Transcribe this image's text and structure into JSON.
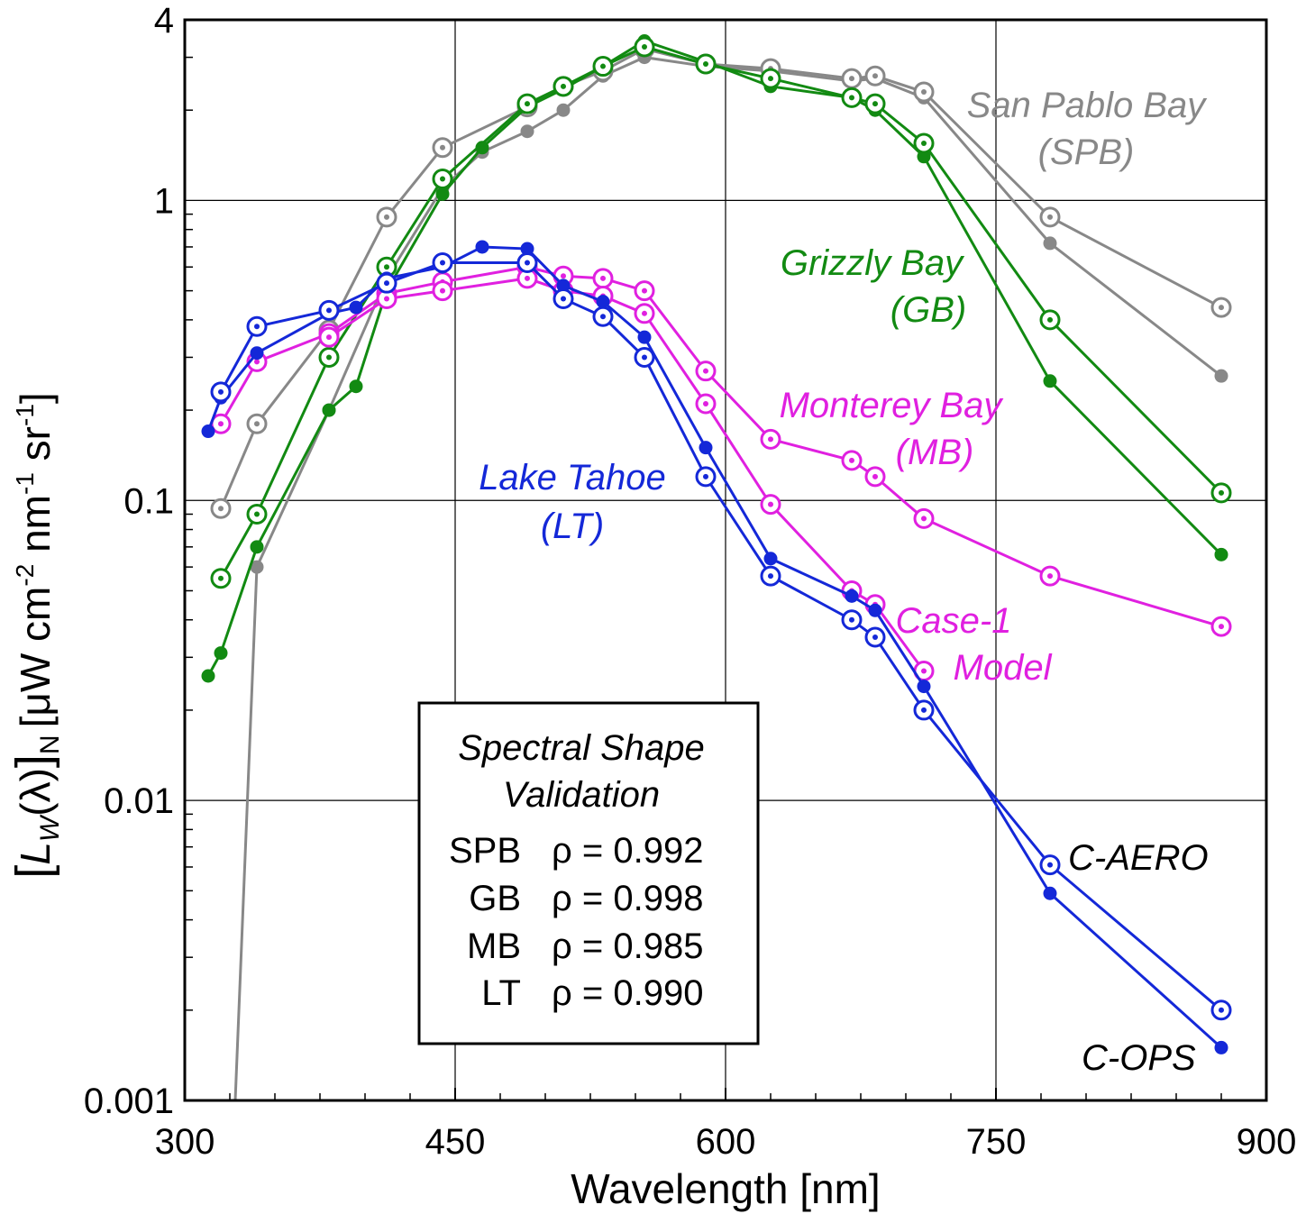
{
  "chart_data": {
    "type": "line",
    "title": "",
    "xlabel": "Wavelength [nm]",
    "ylabel": {
      "bracket_open": "[",
      "symbol": "L",
      "symbol_sub": "W",
      "arg": "(λ)",
      "bracket_close": "]",
      "sub_n": "N",
      "units": "[μW cm",
      "exp1": "-2",
      "units2": " nm",
      "exp2": "-1",
      "units3": " sr",
      "exp3": "-1",
      "units_close": "]"
    },
    "xlim": [
      300,
      900
    ],
    "ylim": [
      0.001,
      4
    ],
    "yscale": "log",
    "grid": true,
    "x_ticks": [
      300,
      450,
      600,
      750,
      900
    ],
    "y_ticks": [
      {
        "value": 0.001,
        "label": "0.001"
      },
      {
        "value": 0.01,
        "label": "0.01"
      },
      {
        "value": 0.1,
        "label": "0.1"
      },
      {
        "value": 1,
        "label": "1"
      },
      {
        "value": 4,
        "label": "4"
      }
    ],
    "series": [
      {
        "name": "San Pablo Bay C-OPS",
        "color": "#888888",
        "marker": "filled",
        "has_curve_start": true,
        "x": [
          328,
          340,
          380,
          412,
          443,
          465,
          490,
          510,
          532,
          555,
          589,
          625,
          670,
          683,
          710,
          780,
          875
        ],
        "y": [
          0.001,
          0.06,
          0.2,
          0.55,
          1.1,
          1.45,
          1.7,
          2.0,
          2.6,
          3.0,
          2.8,
          2.7,
          2.5,
          2.55,
          2.2,
          0.72,
          0.26
        ]
      },
      {
        "name": "San Pablo Bay C-AERO",
        "color": "#888888",
        "marker": "target",
        "x": [
          320,
          340,
          380,
          412,
          443,
          490,
          510,
          532,
          555,
          589,
          625,
          670,
          683,
          710,
          780,
          875
        ],
        "y": [
          0.094,
          0.18,
          0.37,
          0.88,
          1.5,
          2.05,
          2.4,
          2.7,
          3.2,
          2.85,
          2.75,
          2.55,
          2.6,
          2.3,
          0.88,
          0.44
        ]
      },
      {
        "name": "Grizzly Bay C-OPS",
        "color": "#128a12",
        "marker": "filled",
        "x": [
          313,
          320,
          340,
          380,
          395,
          412,
          443,
          465,
          490,
          510,
          532,
          555,
          589,
          625,
          670,
          683,
          710,
          780,
          875
        ],
        "y": [
          0.026,
          0.031,
          0.07,
          0.2,
          0.24,
          0.5,
          1.05,
          1.5,
          2.05,
          2.35,
          2.8,
          3.4,
          2.9,
          2.4,
          2.2,
          2.0,
          1.4,
          0.25,
          0.066
        ]
      },
      {
        "name": "Grizzly Bay C-AERO",
        "color": "#128a12",
        "marker": "target",
        "x": [
          320,
          340,
          380,
          412,
          443,
          490,
          510,
          532,
          555,
          589,
          625,
          670,
          683,
          710,
          780,
          875
        ],
        "y": [
          0.055,
          0.09,
          0.3,
          0.6,
          1.18,
          2.1,
          2.4,
          2.8,
          3.25,
          2.85,
          2.55,
          2.2,
          2.1,
          1.55,
          0.4,
          0.106
        ]
      },
      {
        "name": "Monterey Bay C-OPS",
        "color": "#e020e0",
        "marker": "target",
        "x": [
          320,
          340,
          380,
          412,
          443,
          490,
          510,
          532,
          555,
          589,
          625,
          670,
          683,
          710,
          780,
          875
        ],
        "y": [
          0.18,
          0.29,
          0.36,
          0.49,
          0.535,
          0.6,
          0.56,
          0.55,
          0.5,
          0.27,
          0.16,
          0.136,
          0.12,
          0.087,
          0.056,
          0.038
        ]
      },
      {
        "name": "Case-1 Model",
        "color": "#e020e0",
        "marker": "target",
        "x": [
          380,
          412,
          443,
          490,
          510,
          532,
          555,
          589,
          625,
          670,
          683,
          710
        ],
        "y": [
          0.35,
          0.47,
          0.5,
          0.55,
          0.5,
          0.48,
          0.42,
          0.21,
          0.097,
          0.05,
          0.045,
          0.027
        ]
      },
      {
        "name": "Lake Tahoe C-OPS",
        "color": "#1428d8",
        "marker": "filled",
        "x": [
          313,
          320,
          340,
          380,
          395,
          412,
          443,
          465,
          490,
          510,
          532,
          555,
          589,
          625,
          670,
          683,
          710,
          780,
          875
        ],
        "y": [
          0.17,
          0.22,
          0.31,
          0.42,
          0.44,
          0.55,
          0.6,
          0.7,
          0.69,
          0.52,
          0.46,
          0.35,
          0.15,
          0.064,
          0.048,
          0.043,
          0.024,
          0.0049,
          0.0015
        ]
      },
      {
        "name": "Lake Tahoe C-AERO",
        "color": "#1428d8",
        "marker": "target",
        "x": [
          320,
          340,
          380,
          412,
          443,
          490,
          510,
          532,
          555,
          589,
          625,
          670,
          683,
          710,
          780,
          875
        ],
        "y": [
          0.23,
          0.38,
          0.43,
          0.53,
          0.62,
          0.62,
          0.47,
          0.41,
          0.3,
          0.12,
          0.056,
          0.04,
          0.035,
          0.02,
          0.0061,
          0.002
        ]
      }
    ],
    "annotations": [
      {
        "text": "San Pablo Bay",
        "color": "#888888",
        "key": "spb1"
      },
      {
        "text": "(SPB)",
        "color": "#888888",
        "key": "spb2"
      },
      {
        "text": "Grizzly Bay",
        "color": "#128a12",
        "key": "gb1"
      },
      {
        "text": "(GB)",
        "color": "#128a12",
        "key": "gb2"
      },
      {
        "text": "Monterey Bay",
        "color": "#e020e0",
        "key": "mb1"
      },
      {
        "text": "(MB)",
        "color": "#e020e0",
        "key": "mb2"
      },
      {
        "text": "Lake Tahoe",
        "color": "#1428d8",
        "key": "lt1"
      },
      {
        "text": "(LT)",
        "color": "#1428d8",
        "key": "lt2"
      },
      {
        "text": "Case-1",
        "color": "#e020e0",
        "key": "c1a"
      },
      {
        "text": "Model",
        "color": "#e020e0",
        "key": "c1b"
      },
      {
        "text": "C-AERO",
        "color": "#000000",
        "key": "caero"
      },
      {
        "text": "C-OPS",
        "color": "#000000",
        "key": "cops"
      }
    ],
    "legend_box": {
      "title_line1": "Spectral Shape",
      "title_line2": "Validation",
      "rows": [
        {
          "site": "SPB",
          "stat": "ρ = 0.992"
        },
        {
          "site": "GB",
          "stat": "ρ = 0.998"
        },
        {
          "site": "MB",
          "stat": "ρ = 0.985"
        },
        {
          "site": "LT",
          "stat": "ρ = 0.990"
        }
      ]
    }
  }
}
